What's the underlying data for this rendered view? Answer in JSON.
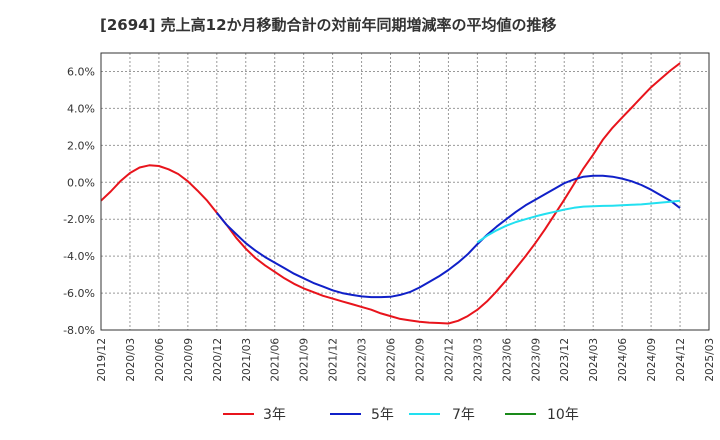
{
  "chart_data": {
    "type": "line",
    "title": "[2694]  売上高12か月移動合計の対前年同期増減率の平均値の推移",
    "xlabel": "",
    "ylabel": "",
    "ylim": [
      -8.0,
      7.0
    ],
    "y_ticks": [
      "6.0%",
      "4.0%",
      "2.0%",
      "0.0%",
      "-2.0%",
      "-4.0%",
      "-6.0%",
      "-8.0%"
    ],
    "y_tick_values": [
      6,
      4,
      2,
      0,
      -2,
      -4,
      -6,
      -8
    ],
    "x_ticks": [
      "2019/12",
      "2020/03",
      "2020/06",
      "2020/09",
      "2020/12",
      "2021/03",
      "2021/06",
      "2021/09",
      "2021/12",
      "2022/03",
      "2022/06",
      "2022/09",
      "2022/12",
      "2023/03",
      "2023/06",
      "2023/09",
      "2023/12",
      "2024/03",
      "2024/06",
      "2024/09",
      "2024/12",
      "2025/03"
    ],
    "grid": true,
    "legend_position": "bottom",
    "series": [
      {
        "name": "3年",
        "color": "#e8141c",
        "points": [
          [
            "2019/12",
            -1.0
          ],
          [
            "2020/01",
            -0.5
          ],
          [
            "2020/02",
            0.05
          ],
          [
            "2020/03",
            0.5
          ],
          [
            "2020/04",
            0.8
          ],
          [
            "2020/05",
            0.92
          ],
          [
            "2020/06",
            0.88
          ],
          [
            "2020/07",
            0.7
          ],
          [
            "2020/08",
            0.45
          ],
          [
            "2020/09",
            0.05
          ],
          [
            "2020/10",
            -0.45
          ],
          [
            "2020/11",
            -1.0
          ],
          [
            "2020/12",
            -1.65
          ],
          [
            "2021/01",
            -2.3
          ],
          [
            "2021/02",
            -3.0
          ],
          [
            "2021/03",
            -3.6
          ],
          [
            "2021/04",
            -4.1
          ],
          [
            "2021/05",
            -4.5
          ],
          [
            "2021/06",
            -4.85
          ],
          [
            "2021/07",
            -5.2
          ],
          [
            "2021/08",
            -5.5
          ],
          [
            "2021/09",
            -5.75
          ],
          [
            "2021/10",
            -5.95
          ],
          [
            "2021/11",
            -6.15
          ],
          [
            "2021/12",
            -6.3
          ],
          [
            "2022/01",
            -6.45
          ],
          [
            "2022/02",
            -6.6
          ],
          [
            "2022/03",
            -6.75
          ],
          [
            "2022/04",
            -6.9
          ],
          [
            "2022/05",
            -7.1
          ],
          [
            "2022/06",
            -7.25
          ],
          [
            "2022/07",
            -7.4
          ],
          [
            "2022/08",
            -7.48
          ],
          [
            "2022/09",
            -7.55
          ],
          [
            "2022/10",
            -7.6
          ],
          [
            "2022/11",
            -7.62
          ],
          [
            "2022/12",
            -7.65
          ],
          [
            "2023/01",
            -7.5
          ],
          [
            "2023/02",
            -7.25
          ],
          [
            "2023/03",
            -6.9
          ],
          [
            "2023/04",
            -6.45
          ],
          [
            "2023/05",
            -5.9
          ],
          [
            "2023/06",
            -5.3
          ],
          [
            "2023/07",
            -4.65
          ],
          [
            "2023/08",
            -4.0
          ],
          [
            "2023/09",
            -3.3
          ],
          [
            "2023/10",
            -2.55
          ],
          [
            "2023/11",
            -1.75
          ],
          [
            "2023/12",
            -0.95
          ],
          [
            "2024/01",
            -0.1
          ],
          [
            "2024/02",
            0.75
          ],
          [
            "2024/03",
            1.5
          ],
          [
            "2024/04",
            2.3
          ],
          [
            "2024/05",
            2.95
          ],
          [
            "2024/06",
            3.5
          ],
          [
            "2024/07",
            4.05
          ],
          [
            "2024/08",
            4.6
          ],
          [
            "2024/09",
            5.15
          ],
          [
            "2024/10",
            5.6
          ],
          [
            "2024/11",
            6.05
          ],
          [
            "2024/12",
            6.45
          ]
        ]
      },
      {
        "name": "5年",
        "color": "#1020c8",
        "points": [
          [
            "2020/12",
            -1.65
          ],
          [
            "2021/01",
            -2.3
          ],
          [
            "2021/02",
            -2.8
          ],
          [
            "2021/03",
            -3.3
          ],
          [
            "2021/04",
            -3.7
          ],
          [
            "2021/05",
            -4.05
          ],
          [
            "2021/06",
            -4.35
          ],
          [
            "2021/07",
            -4.65
          ],
          [
            "2021/08",
            -4.95
          ],
          [
            "2021/09",
            -5.2
          ],
          [
            "2021/10",
            -5.45
          ],
          [
            "2021/11",
            -5.65
          ],
          [
            "2021/12",
            -5.85
          ],
          [
            "2022/01",
            -6.0
          ],
          [
            "2022/02",
            -6.1
          ],
          [
            "2022/03",
            -6.18
          ],
          [
            "2022/04",
            -6.22
          ],
          [
            "2022/05",
            -6.22
          ],
          [
            "2022/06",
            -6.2
          ],
          [
            "2022/07",
            -6.1
          ],
          [
            "2022/08",
            -5.95
          ],
          [
            "2022/09",
            -5.7
          ],
          [
            "2022/10",
            -5.4
          ],
          [
            "2022/11",
            -5.1
          ],
          [
            "2022/12",
            -4.75
          ],
          [
            "2023/01",
            -4.35
          ],
          [
            "2023/02",
            -3.9
          ],
          [
            "2023/03",
            -3.35
          ],
          [
            "2023/04",
            -2.85
          ],
          [
            "2023/05",
            -2.4
          ],
          [
            "2023/06",
            -2.0
          ],
          [
            "2023/07",
            -1.6
          ],
          [
            "2023/08",
            -1.25
          ],
          [
            "2023/09",
            -0.95
          ],
          [
            "2023/10",
            -0.65
          ],
          [
            "2023/11",
            -0.35
          ],
          [
            "2023/12",
            -0.05
          ],
          [
            "2024/01",
            0.15
          ],
          [
            "2024/02",
            0.3
          ],
          [
            "2024/03",
            0.35
          ],
          [
            "2024/04",
            0.35
          ],
          [
            "2024/05",
            0.3
          ],
          [
            "2024/06",
            0.2
          ],
          [
            "2024/07",
            0.05
          ],
          [
            "2024/08",
            -0.15
          ],
          [
            "2024/09",
            -0.4
          ],
          [
            "2024/10",
            -0.7
          ],
          [
            "2024/11",
            -1.0
          ],
          [
            "2024/12",
            -1.4
          ]
        ]
      },
      {
        "name": "7年",
        "color": "#22e0f0",
        "points": [
          [
            "2023/03",
            -3.25
          ],
          [
            "2023/04",
            -2.9
          ],
          [
            "2023/05",
            -2.6
          ],
          [
            "2023/06",
            -2.35
          ],
          [
            "2023/07",
            -2.15
          ],
          [
            "2023/08",
            -2.0
          ],
          [
            "2023/09",
            -1.85
          ],
          [
            "2023/10",
            -1.72
          ],
          [
            "2023/11",
            -1.6
          ],
          [
            "2023/12",
            -1.48
          ],
          [
            "2024/01",
            -1.38
          ],
          [
            "2024/02",
            -1.32
          ],
          [
            "2024/03",
            -1.3
          ],
          [
            "2024/04",
            -1.28
          ],
          [
            "2024/05",
            -1.27
          ],
          [
            "2024/06",
            -1.25
          ],
          [
            "2024/07",
            -1.22
          ],
          [
            "2024/08",
            -1.2
          ],
          [
            "2024/09",
            -1.15
          ],
          [
            "2024/10",
            -1.1
          ],
          [
            "2024/11",
            -1.05
          ],
          [
            "2024/12",
            -1.0
          ]
        ]
      },
      {
        "name": "10年",
        "color": "#1a8a1a",
        "points": []
      }
    ]
  }
}
